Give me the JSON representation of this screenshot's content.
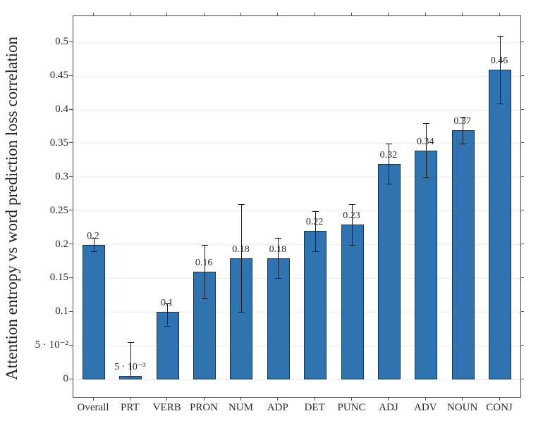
{
  "chart_data": {
    "type": "bar",
    "title": "",
    "xlabel": "",
    "ylabel": "Attention entropy vs word prediction loss correlation",
    "categories": [
      "Overall",
      "PRT",
      "VERB",
      "PRON",
      "NUM",
      "ADP",
      "DET",
      "PUNC",
      "ADJ",
      "ADV",
      "NOUN",
      "CONJ"
    ],
    "values": [
      0.2,
      0.005,
      0.1,
      0.16,
      0.18,
      0.18,
      0.22,
      0.23,
      0.32,
      0.34,
      0.37,
      0.46
    ],
    "value_labels": [
      "0.2",
      "5 · 10⁻³",
      "0.1",
      "0.16",
      "0.18",
      "0.18",
      "0.22",
      "0.23",
      "0.32",
      "0.34",
      "0.37",
      "0.46"
    ],
    "error_low": [
      0.19,
      0.005,
      0.08,
      0.12,
      0.1,
      0.15,
      0.19,
      0.2,
      0.29,
      0.3,
      0.35,
      0.41
    ],
    "error_high": [
      0.21,
      0.055,
      0.113,
      0.2,
      0.26,
      0.21,
      0.25,
      0.26,
      0.35,
      0.38,
      0.39,
      0.51
    ],
    "yticks": [
      0,
      0.05,
      0.1,
      0.15,
      0.2,
      0.25,
      0.3,
      0.35,
      0.4,
      0.45,
      0.5
    ],
    "ytick_labels": [
      "0",
      "5 · 10⁻²",
      "0.1",
      "0.15",
      "0.2",
      "0.25",
      "0.3",
      "0.35",
      "0.4",
      "0.45",
      "0.5"
    ],
    "ylim": [
      -0.026,
      0.539
    ],
    "grid": true,
    "legend": null,
    "colors": {
      "bar_fill": "#2f73b0",
      "bar_edge": "#16344f",
      "error_bar": "#1c1c1c",
      "gridline": "#e8e8e8",
      "axis_border": "#454545",
      "text": "#2b2b2b"
    }
  }
}
